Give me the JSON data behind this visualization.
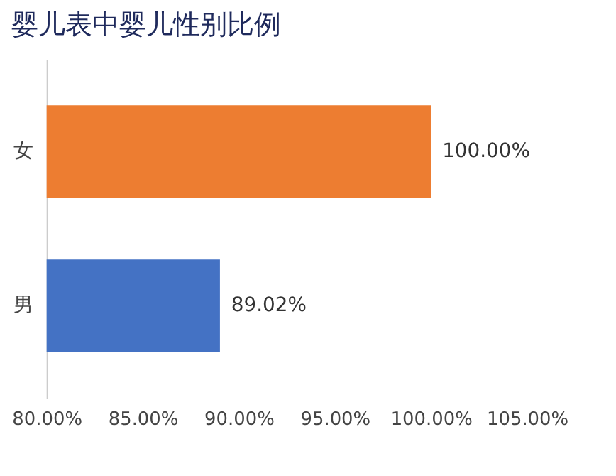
{
  "chart_data": {
    "type": "bar",
    "orientation": "horizontal",
    "title": "婴儿表中婴儿性别比例",
    "categories": [
      "女",
      "男"
    ],
    "values": [
      100.0,
      89.02
    ],
    "colors": [
      "#ed7d31",
      "#4472c4"
    ],
    "value_labels": [
      "100.00%",
      "89.02%"
    ],
    "xlim": [
      80,
      105
    ],
    "xticks": [
      {
        "value": 80,
        "label": "80.00%"
      },
      {
        "value": 85,
        "label": "85.00%"
      },
      {
        "value": 90,
        "label": "90.00%"
      },
      {
        "value": 95,
        "label": "95.00%"
      },
      {
        "value": 100,
        "label": "100.00%"
      },
      {
        "value": 105,
        "label": "105.00%"
      }
    ],
    "grid": false,
    "legend": false
  }
}
